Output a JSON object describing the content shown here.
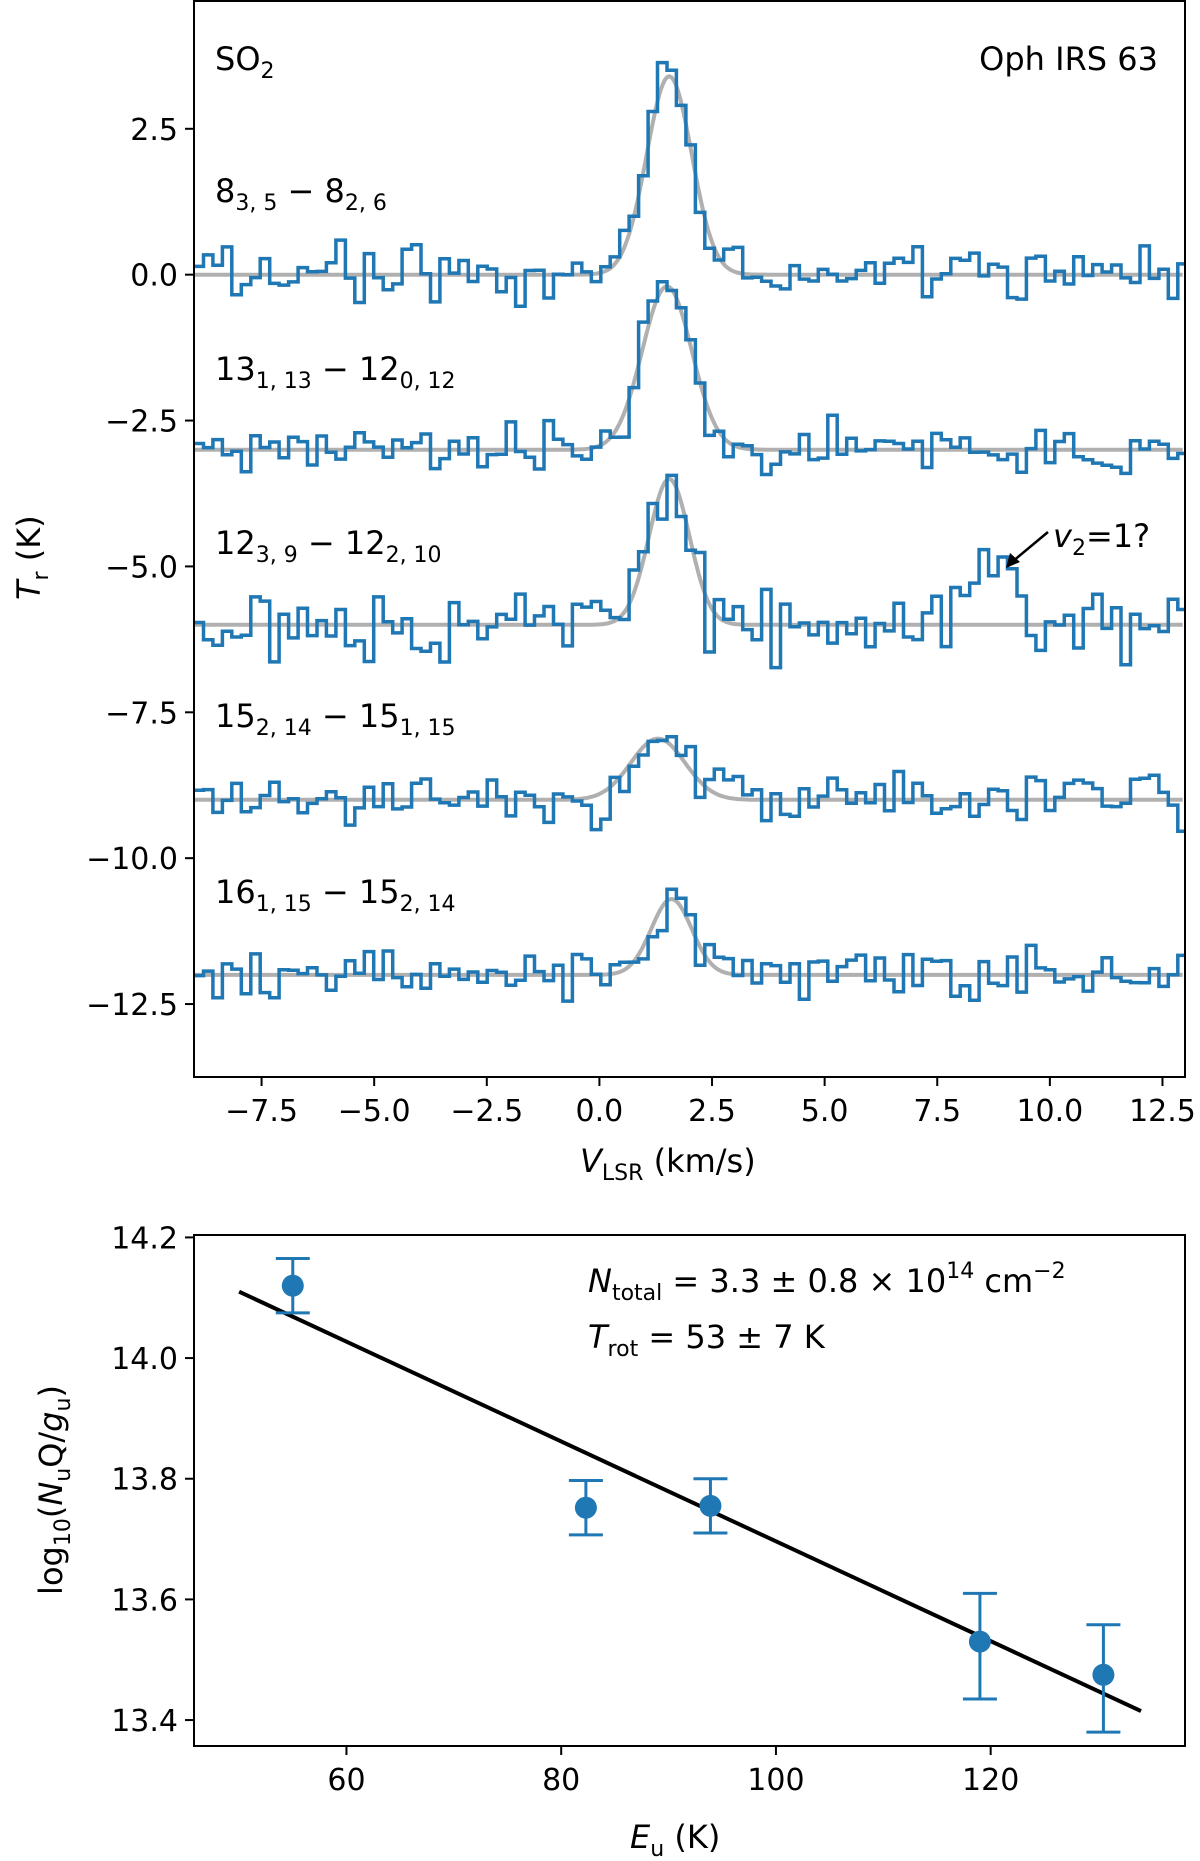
{
  "chart_data": [
    {
      "type": "line",
      "title": "",
      "molecule": {
        "main": "SO",
        "sub": "2"
      },
      "source": "Oph IRS 63",
      "xlabel": {
        "main": "V",
        "sub": "LSR",
        "rest": " (km/s)"
      },
      "ylabel": {
        "main": "T",
        "sub": "r",
        "rest": " (K)"
      },
      "xlim": [
        -9,
        13
      ],
      "ylim": [
        -13.75,
        4.69
      ],
      "xticks": [
        -7.5,
        -5.0,
        -2.5,
        0.0,
        2.5,
        5.0,
        7.5,
        10.0,
        12.5
      ],
      "yticks": [
        2.5,
        0.0,
        -2.5,
        -5.0,
        -7.5,
        -10.0,
        -12.5
      ],
      "channel_width_kms": 0.21,
      "colors": {
        "spectrum": "#1f77b4",
        "fit": "#b0b0b0"
      },
      "series": [
        {
          "name": "8(3,5)-8(2,6)",
          "label": {
            "a": "8",
            "as": "3, 5",
            "b": "8",
            "bs": "2, 6"
          },
          "offset": 0,
          "fit": {
            "amplitude": 3.4,
            "center": 1.55,
            "sigma": 0.5
          },
          "peak_observed": 3.75,
          "noise_rms": 0.28
        },
        {
          "name": "13(1,13)-12(0,12)",
          "label": {
            "a": "13",
            "as": "1, 13",
            "b": "12",
            "bs": "0, 12"
          },
          "offset": -3,
          "fit": {
            "amplitude": 2.8,
            "center": 1.5,
            "sigma": 0.55
          },
          "peak_observed": -0.05,
          "noise_rms": 0.28
        },
        {
          "name": "12(3,9)-12(2,10)",
          "label": {
            "a": "12",
            "as": "3, 9",
            "b": "12",
            "bs": "2, 10"
          },
          "offset": -6,
          "fit": {
            "amplitude": 2.5,
            "center": 1.55,
            "sigma": 0.45
          },
          "peak_observed": -3.1,
          "noise_rms": 0.42,
          "extra_feature": {
            "center": 8.6,
            "amplitude": 1.0,
            "sigma": 0.45
          }
        },
        {
          "name": "15(2,14)-15(1,15)",
          "label": {
            "a": "15",
            "as": "2, 14",
            "b": "15",
            "bs": "1, 15"
          },
          "offset": -9,
          "fit": {
            "amplitude": 1.05,
            "center": 1.3,
            "sigma": 0.6
          },
          "peak_observed": -7.55,
          "noise_rms": 0.3
        },
        {
          "name": "16(1,15)-15(2,14)",
          "label": {
            "a": "16",
            "as": "1, 15",
            "b": "15",
            "bs": "2, 14"
          },
          "offset": -12,
          "fit": {
            "amplitude": 1.3,
            "center": 1.6,
            "sigma": 0.45
          },
          "peak_observed": -10.65,
          "noise_rms": 0.3
        }
      ],
      "annotation": {
        "main": "v",
        "sub": "2",
        "rest": "=1?",
        "points_to_x": 8.9,
        "points_to_y": -5.1
      }
    },
    {
      "type": "scatter",
      "title": "",
      "xlabel": {
        "main": "E",
        "sub": "u",
        "rest": " (K)"
      },
      "ylabel": {
        "pre": "log",
        "presub": "10",
        "open": "(",
        "n": "N",
        "nsub": "u",
        "q": "Q/",
        "g": "g",
        "gsub": "u",
        "close": ")"
      },
      "xlim": [
        45.8,
        138.1
      ],
      "ylim": [
        13.357,
        14.204
      ],
      "xticks": [
        60,
        80,
        100,
        120
      ],
      "yticks": [
        14.2,
        14.0,
        13.8,
        13.6,
        13.4
      ],
      "colors": {
        "points": "#1f77b4",
        "fit": "#000000"
      },
      "points": [
        {
          "x": 55.0,
          "y": 14.12,
          "err_low": 0.045,
          "err_high": 0.045
        },
        {
          "x": 82.3,
          "y": 13.752,
          "err_low": 0.045,
          "err_high": 0.045
        },
        {
          "x": 93.9,
          "y": 13.755,
          "err_low": 0.045,
          "err_high": 0.045
        },
        {
          "x": 119.0,
          "y": 13.53,
          "err_low": 0.095,
          "err_high": 0.08
        },
        {
          "x": 130.5,
          "y": 13.475,
          "err_low": 0.095,
          "err_high": 0.083
        }
      ],
      "fit_line": {
        "x": [
          50,
          134
        ],
        "y": [
          14.11,
          13.415
        ]
      },
      "annotations": {
        "ntotal": {
          "main": "N",
          "sub": "total",
          "rest": " = 3.3 ± 0.8 × 10",
          "sup": "14",
          "unit": " cm",
          "unitsup": "−2"
        },
        "trot": {
          "main": "T",
          "sub": "rot",
          "rest": " = 53 ± 7 K"
        }
      }
    }
  ]
}
